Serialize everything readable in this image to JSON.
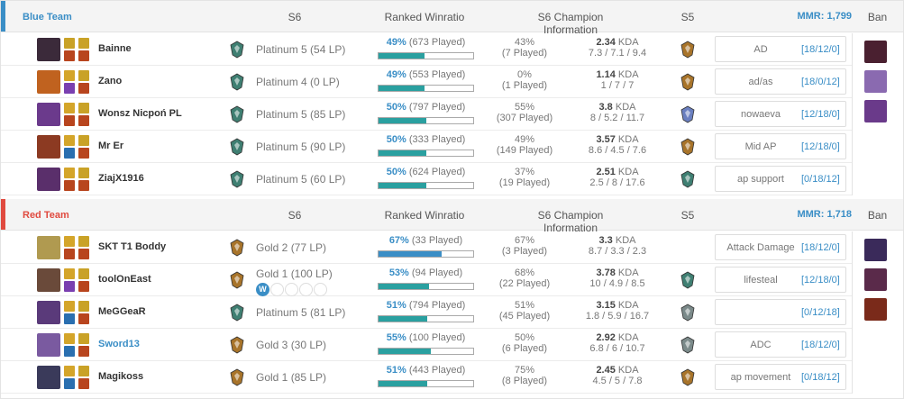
{
  "columns": {
    "s6": "S6",
    "winratio": "Ranked Winratio",
    "champ": "S6 Champion Information",
    "s5": "S5",
    "ban": "Ban"
  },
  "teams": [
    {
      "name": "Blue Team",
      "color": "#3a8ec6",
      "mmr": "MMR: 1,799",
      "players": [
        {
          "name": "Bainne",
          "rank": "Platinum 5 (54 LP)",
          "rank_tier": "platinum",
          "wr_pct": "49%",
          "wr_played": "(673 Played)",
          "wr_value": 49,
          "champ_wr": "43%",
          "champ_played": "(7 Played)",
          "kda": "2.34",
          "kda_label": "KDA",
          "kda_line": "7.3 / 7.1 / 9.4",
          "s5_tier": "gold",
          "note": "AD",
          "note_score": "[18/12/0]",
          "portrait": "#3b2a3a",
          "spell1": "#c9a227",
          "spell2": "#b8451e"
        },
        {
          "name": "Zano",
          "rank": "Platinum 4 (0 LP)",
          "rank_tier": "platinum",
          "wr_pct": "49%",
          "wr_played": "(553 Played)",
          "wr_value": 49,
          "champ_wr": "0%",
          "champ_played": "(1 Played)",
          "kda": "1.14",
          "kda_label": "KDA",
          "kda_line": "1 / 7 / 7",
          "s5_tier": "gold",
          "note": "ad/as",
          "note_score": "[18/0/12]",
          "portrait": "#c0621f",
          "spell1": "#d4a52a",
          "spell2": "#7a3fb0"
        },
        {
          "name": "Wonsz Nicpoń PL",
          "rank": "Platinum 5 (85 LP)",
          "rank_tier": "platinum",
          "wr_pct": "50%",
          "wr_played": "(797 Played)",
          "wr_value": 50,
          "champ_wr": "55%",
          "champ_played": "(307 Played)",
          "kda": "3.8",
          "kda_label": "KDA",
          "kda_line": "8 / 5.2 / 11.7",
          "s5_tier": "diamond",
          "note": "nowaeva",
          "note_score": "[12/18/0]",
          "portrait": "#6b3a8c",
          "spell1": "#d4a52a",
          "spell2": "#b8451e"
        },
        {
          "name": "Mr Er",
          "rank": "Platinum 5 (90 LP)",
          "rank_tier": "platinum",
          "wr_pct": "50%",
          "wr_played": "(333 Played)",
          "wr_value": 50,
          "champ_wr": "49%",
          "champ_played": "(149 Played)",
          "kda": "3.57",
          "kda_label": "KDA",
          "kda_line": "8.6 / 4.5 / 7.6",
          "s5_tier": "gold",
          "note": "Mid AP",
          "note_score": "[12/18/0]",
          "portrait": "#8c3a22",
          "spell1": "#d4a52a",
          "spell2": "#2a6fb0"
        },
        {
          "name": "ZiajX1916",
          "rank": "Platinum 5 (60 LP)",
          "rank_tier": "platinum",
          "wr_pct": "50%",
          "wr_played": "(624 Played)",
          "wr_value": 50,
          "champ_wr": "37%",
          "champ_played": "(19 Played)",
          "kda": "2.51",
          "kda_label": "KDA",
          "kda_line": "2.5 / 8 / 17.6",
          "s5_tier": "platinum",
          "note": "ap support",
          "note_score": "[0/18/12]",
          "portrait": "#5a2f6b",
          "spell1": "#d4a52a",
          "spell2": "#b8451e"
        }
      ],
      "bans": [
        {
          "color": "#4a2030"
        },
        {
          "color": "#8a6ab0"
        },
        {
          "color": "#6a3a8a"
        }
      ]
    },
    {
      "name": "Red Team",
      "color": "#e04a3f",
      "mmr": "MMR: 1,718",
      "players": [
        {
          "name": "SKT T1 Boddy",
          "rank": "Gold 2 (77 LP)",
          "rank_tier": "gold",
          "wr_pct": "67%",
          "wr_played": "(33 Played)",
          "wr_value": 67,
          "wr_bar": "blue",
          "champ_wr": "67%",
          "champ_played": "(3 Played)",
          "kda": "3.3",
          "kda_label": "KDA",
          "kda_line": "8.7 / 3.3 / 2.3",
          "s5_tier": "",
          "note": "Attack Damage",
          "note_score": "[18/12/0]",
          "portrait": "#b09a50",
          "spell1": "#d4a52a",
          "spell2": "#b8451e"
        },
        {
          "name": "toolOnEast",
          "rank": "Gold 1 (100 LP)",
          "rank_tier": "gold",
          "series": [
            "W",
            "",
            "",
            "",
            ""
          ],
          "wr_pct": "53%",
          "wr_played": "(94 Played)",
          "wr_value": 53,
          "champ_wr": "68%",
          "champ_played": "(22 Played)",
          "kda": "3.78",
          "kda_label": "KDA",
          "kda_line": "10 / 4.9 / 8.5",
          "s5_tier": "platinum",
          "note": "lifesteal",
          "note_score": "[12/18/0]",
          "portrait": "#6a4a3a",
          "spell1": "#d4a52a",
          "spell2": "#7a3fb0"
        },
        {
          "name": "MeGGeaR",
          "rank": "Platinum 5 (81 LP)",
          "rank_tier": "platinum",
          "wr_pct": "51%",
          "wr_played": "(794 Played)",
          "wr_value": 51,
          "champ_wr": "51%",
          "champ_played": "(45 Played)",
          "kda": "3.15",
          "kda_label": "KDA",
          "kda_line": "1.8 / 5.9 / 16.7",
          "s5_tier": "silver",
          "note": "",
          "note_score": "[0/12/18]",
          "portrait": "#5a3a7a",
          "spell1": "#d4a52a",
          "spell2": "#2a6fb0"
        },
        {
          "name": "Sword13",
          "link": true,
          "rank": "Gold 3 (30 LP)",
          "rank_tier": "gold",
          "wr_pct": "55%",
          "wr_played": "(100 Played)",
          "wr_value": 55,
          "champ_wr": "50%",
          "champ_played": "(6 Played)",
          "kda": "2.92",
          "kda_label": "KDA",
          "kda_line": "6.8 / 6 / 10.7",
          "s5_tier": "silver",
          "note": "ADC",
          "note_score": "[18/12/0]",
          "portrait": "#7a5aa0",
          "spell1": "#d4a52a",
          "spell2": "#2a6fb0"
        },
        {
          "name": "Magikoss",
          "rank": "Gold 1 (85 LP)",
          "rank_tier": "gold",
          "wr_pct": "51%",
          "wr_played": "(443 Played)",
          "wr_value": 51,
          "champ_wr": "75%",
          "champ_played": "(8 Played)",
          "kda": "2.45",
          "kda_label": "KDA",
          "kda_line": "4.5 / 5 / 7.8",
          "s5_tier": "gold",
          "note": "ap movement",
          "note_score": "[0/18/12]",
          "portrait": "#3a3a5a",
          "spell1": "#d4a52a",
          "spell2": "#2a6fb0"
        }
      ],
      "bans": [
        {
          "color": "#3a2a5a"
        },
        {
          "color": "#5a2a4a"
        },
        {
          "color": "#7a2a1a"
        }
      ]
    }
  ]
}
